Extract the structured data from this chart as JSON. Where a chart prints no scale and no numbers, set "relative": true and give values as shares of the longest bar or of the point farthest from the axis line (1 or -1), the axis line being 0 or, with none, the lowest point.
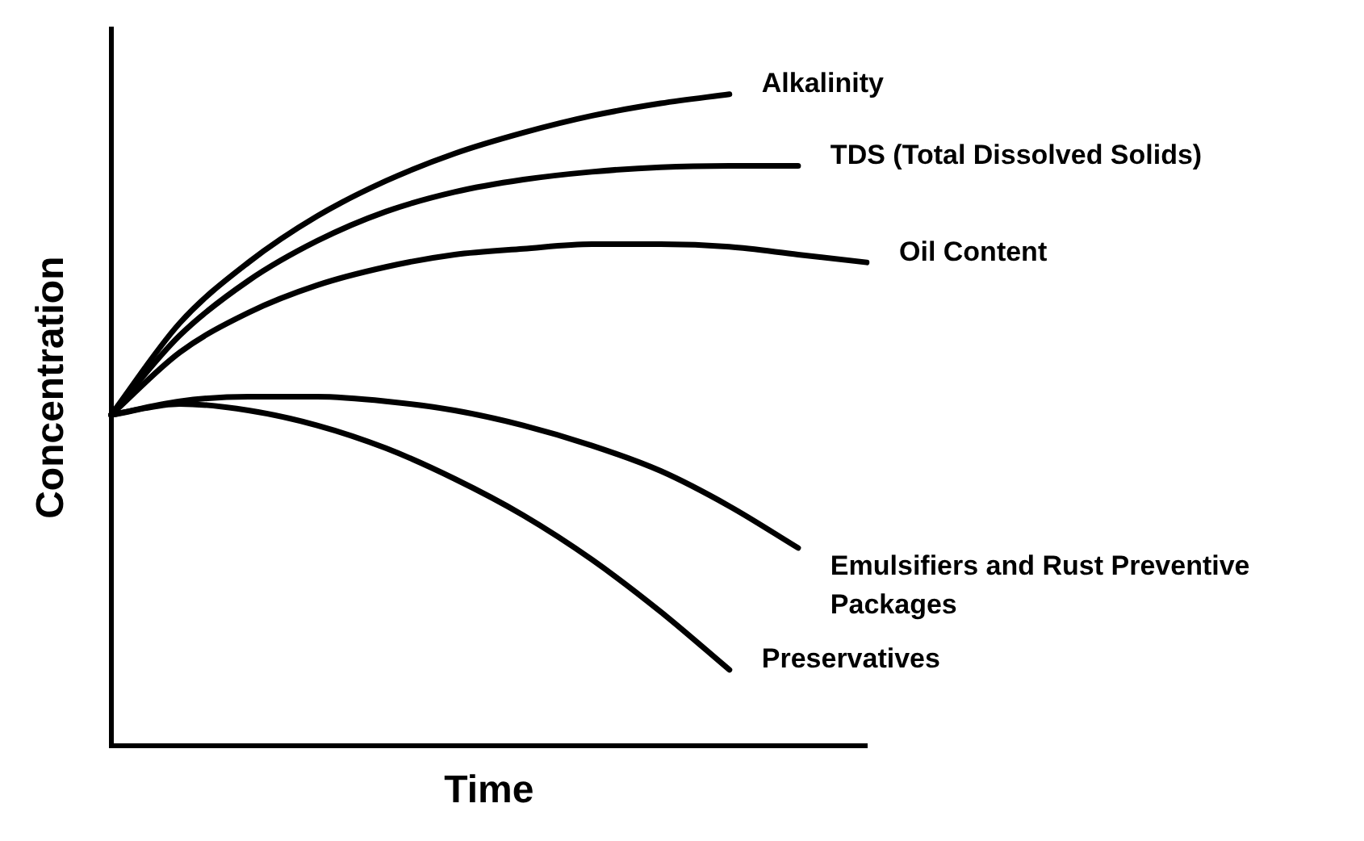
{
  "chart_data": {
    "type": "line",
    "relative": true,
    "xlabel": "Time",
    "ylabel": "Concentration",
    "grid": false,
    "legend": false,
    "tick_labels": false,
    "marker": "none",
    "line_style": "solid",
    "categories": [
      null,
      null,
      null,
      null,
      null,
      null,
      null,
      null,
      null,
      null,
      null,
      null
    ],
    "series": [
      {
        "name": "Alkalinity",
        "color": "#000000",
        "values": [
          0.508,
          0.649,
          0.742,
          0.813,
          0.867,
          0.909,
          0.941,
          0.967,
          0.986,
          1,
          null,
          null
        ]
      },
      {
        "name": "TDS (Total Dissolved Solids)",
        "color": "#000000",
        "values": [
          0.508,
          0.63,
          0.714,
          0.775,
          0.82,
          0.85,
          0.869,
          0.881,
          0.888,
          0.89,
          0.89,
          null
        ]
      },
      {
        "name": "Oil Content",
        "color": "#000000",
        "values": [
          0.508,
          0.604,
          0.665,
          0.707,
          0.735,
          0.754,
          0.763,
          0.77,
          0.77,
          0.766,
          0.754,
          0.742
        ]
      },
      {
        "name": "Emulsifiers and Rust Preventive Packages",
        "color": "#000000",
        "values": [
          0.508,
          0.529,
          0.536,
          0.536,
          0.529,
          0.515,
          0.492,
          0.461,
          0.422,
          0.368,
          0.304,
          null
        ]
      },
      {
        "name": "Preservatives",
        "color": "#000000",
        "values": [
          0.508,
          0.525,
          0.515,
          0.492,
          0.457,
          0.41,
          0.354,
          0.286,
          0.206,
          0.117,
          null,
          null
        ]
      }
    ]
  }
}
